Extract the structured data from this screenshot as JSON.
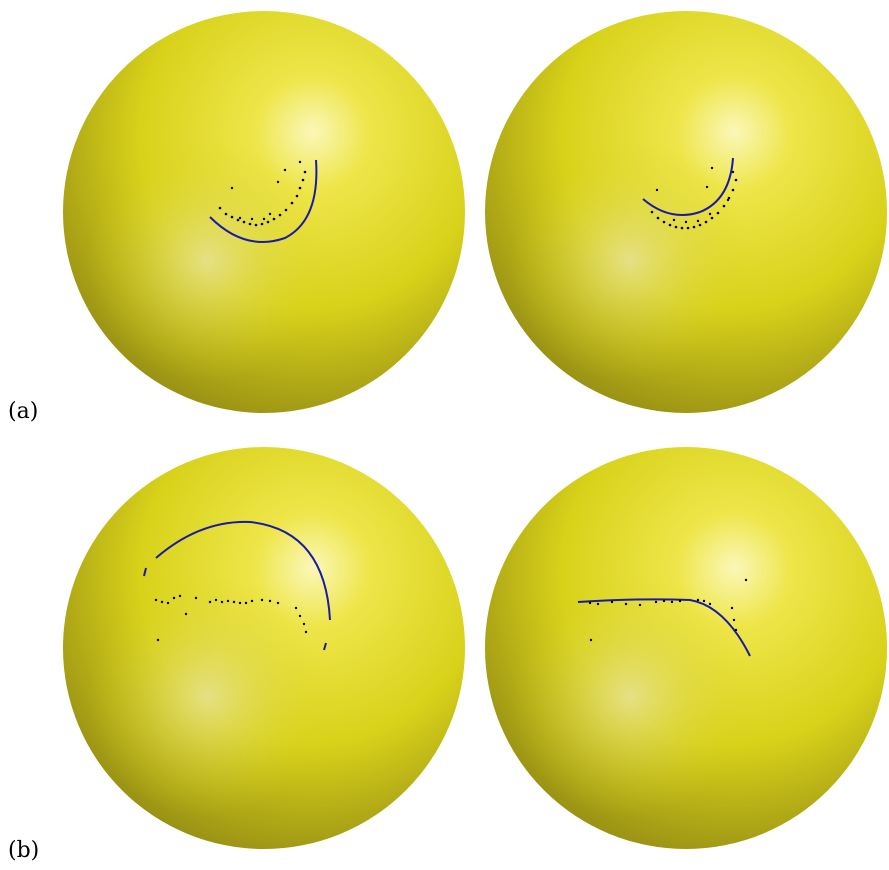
{
  "labels": {
    "row_a": "(a)",
    "row_b": "(b)"
  },
  "colors": {
    "sphere_base": "#d8d21a",
    "sphere_highlight": "#fbf7b8",
    "sphere_shadow": "#8c8413",
    "curve": "#1a1aa8",
    "points": "#000000"
  },
  "spheres": [
    {
      "name": "sphere-a-left",
      "row": "a",
      "column": "left"
    },
    {
      "name": "sphere-a-right",
      "row": "a",
      "column": "right"
    },
    {
      "name": "sphere-b-left",
      "row": "b",
      "column": "left"
    },
    {
      "name": "sphere-b-right",
      "row": "b",
      "column": "right"
    }
  ]
}
